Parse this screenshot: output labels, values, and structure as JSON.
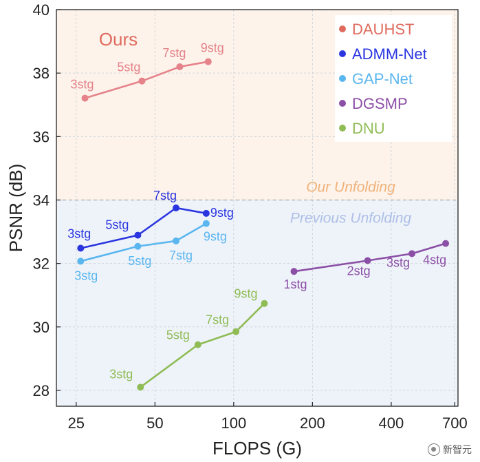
{
  "chart_data": {
    "type": "line",
    "xlabel": "FLOPS (G)",
    "ylabel": "PSNR (dB)",
    "x_scale": "log",
    "xlim": [
      21,
      720
    ],
    "ylim": [
      27.5,
      40
    ],
    "xticks": [
      25,
      50,
      100,
      200,
      400,
      700
    ],
    "xtick_labels": [
      "25",
      "50",
      "100",
      "200",
      "400",
      "700"
    ],
    "yticks": [
      28,
      30,
      32,
      34,
      36,
      38,
      40
    ],
    "ytick_labels": [
      "28",
      "30",
      "32",
      "34",
      "36",
      "38",
      "40"
    ],
    "divider_y": 34,
    "region_labels": {
      "upper": "Our Unfolding",
      "lower": "Previous Unfolding",
      "ours": "Ours"
    },
    "legend_position": "top-right",
    "series": [
      {
        "name": "DAUHST",
        "color": "#e5828a",
        "legend_color": "#e06a5e",
        "points": [
          {
            "x": 27,
            "y": 37.21,
            "label": "3stg"
          },
          {
            "x": 44.6,
            "y": 37.75,
            "label": "5stg"
          },
          {
            "x": 62.2,
            "y": 38.2,
            "label": "7stg"
          },
          {
            "x": 79.9,
            "y": 38.36,
            "label": "9stg"
          }
        ]
      },
      {
        "name": "ADMM-Net",
        "color": "#2a35e0",
        "legend_color": "#2a35e0",
        "points": [
          {
            "x": 26,
            "y": 32.48,
            "label": "3stg"
          },
          {
            "x": 43,
            "y": 32.89,
            "label": "5stg"
          },
          {
            "x": 60.2,
            "y": 33.75,
            "label": "7stg"
          },
          {
            "x": 78.5,
            "y": 33.58,
            "label": "9stg"
          }
        ]
      },
      {
        "name": "GAP-Net",
        "color": "#5ab6ef",
        "legend_color": "#5ab6ef",
        "points": [
          {
            "x": 26,
            "y": 32.07,
            "label": "3stg"
          },
          {
            "x": 43,
            "y": 32.54,
            "label": "5stg"
          },
          {
            "x": 60.2,
            "y": 32.71,
            "label": "7stg"
          },
          {
            "x": 78.5,
            "y": 33.26,
            "label": "9stg"
          }
        ]
      },
      {
        "name": "DGSMP",
        "color": "#8c4fa6",
        "legend_color": "#8c4fa6",
        "points": [
          {
            "x": 170,
            "y": 31.75,
            "label": "1stg"
          },
          {
            "x": 325,
            "y": 32.09,
            "label": "2stg"
          },
          {
            "x": 480,
            "y": 32.31,
            "label": "3stg"
          },
          {
            "x": 646,
            "y": 32.63,
            "label": "4stg"
          }
        ]
      },
      {
        "name": "DNU",
        "color": "#8fbc55",
        "legend_color": "#8fbc55",
        "points": [
          {
            "x": 44,
            "y": 28.1,
            "label": "3stg"
          },
          {
            "x": 73,
            "y": 29.44,
            "label": "5stg"
          },
          {
            "x": 102,
            "y": 29.85,
            "label": "7stg"
          },
          {
            "x": 131,
            "y": 30.74,
            "label": "9stg"
          }
        ]
      }
    ]
  },
  "watermark": "新智元"
}
